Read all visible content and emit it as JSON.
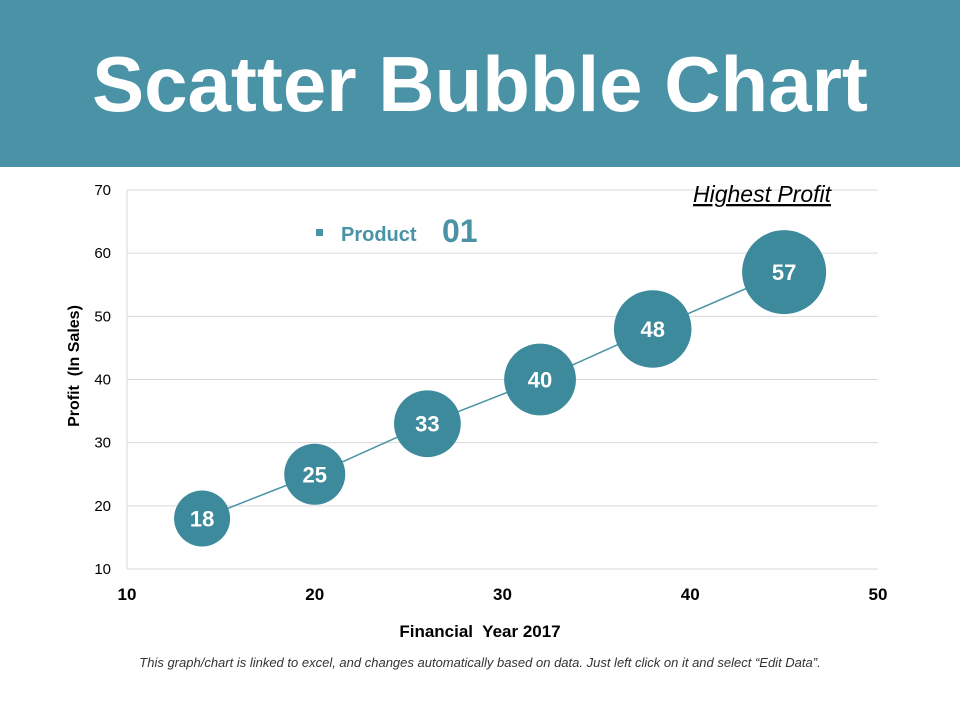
{
  "slide": {
    "title": "Scatter Bubble Chart",
    "footnote": "This graph/chart is linked to excel, and changes automatically based on data. Just left click on it and select “Edit Data”."
  },
  "colors": {
    "header": "#4a93a6",
    "bubble": "#3d8a9c",
    "line": "#4a93a6",
    "grid": "#d9d9d9",
    "text": "#000000"
  },
  "chart_data": {
    "type": "scatter",
    "title": "",
    "xlabel": "Financial  Year 2017",
    "ylabel": "Profit  (In Sales)",
    "xlim": [
      10,
      50
    ],
    "ylim": [
      10,
      70
    ],
    "xticks": [
      10,
      20,
      30,
      40,
      50
    ],
    "yticks": [
      10,
      20,
      30,
      40,
      50,
      60,
      70
    ],
    "grid": true,
    "legend": {
      "prefix": "Product",
      "number": "01",
      "placement": "top-left"
    },
    "annotation": "Highest Profit",
    "series": [
      {
        "name": "Product 01",
        "points": [
          {
            "x": 14,
            "y": 18,
            "label": "18"
          },
          {
            "x": 20,
            "y": 25,
            "label": "25"
          },
          {
            "x": 26,
            "y": 33,
            "label": "33"
          },
          {
            "x": 32,
            "y": 40,
            "label": "40"
          },
          {
            "x": 38,
            "y": 48,
            "label": "48"
          },
          {
            "x": 45,
            "y": 57,
            "label": "57"
          }
        ]
      }
    ]
  }
}
